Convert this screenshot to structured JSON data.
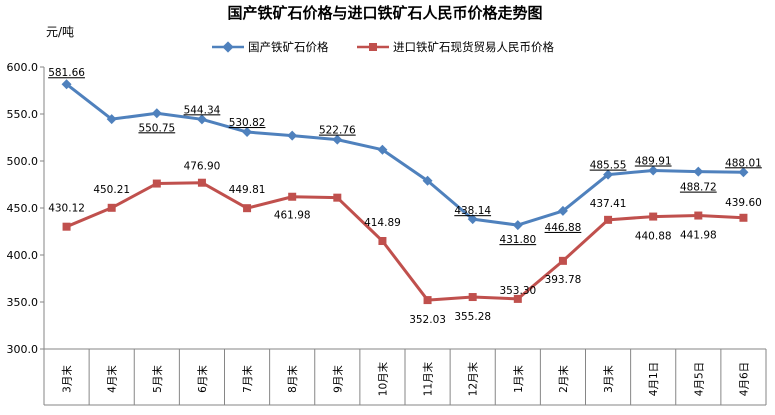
{
  "chart_data": {
    "type": "line",
    "title": "国产铁矿石价格与进口铁矿石人民币价格走势图",
    "ylabel": "元/吨",
    "ylim": [
      300,
      600
    ],
    "yticks": [
      "300.0",
      "350.0",
      "400.0",
      "450.0",
      "500.0",
      "550.0",
      "600.0"
    ],
    "categories": [
      "3月末",
      "4月末",
      "5月末",
      "6月末",
      "7月末",
      "8月末",
      "9月末",
      "10月末",
      "11月末",
      "12月末",
      "1月末",
      "2月末",
      "3月末",
      "4月1日",
      "4月5日",
      "4月6日"
    ],
    "legend_position": "top-center",
    "grid": false,
    "series": [
      {
        "name": "国产铁矿石价格",
        "color": "#4f81bd",
        "marker": "diamond",
        "values": [
          581.66,
          544.5,
          550.75,
          544.34,
          530.82,
          527.0,
          522.76,
          512.0,
          479.0,
          438.14,
          431.8,
          446.88,
          485.55,
          489.91,
          488.72,
          488.01
        ],
        "labels": [
          "581.66",
          "",
          "550.75",
          "544.34",
          "530.82",
          "",
          "522.76",
          "",
          "",
          "438.14",
          "431.80",
          "446.88",
          "485.55",
          "489.91",
          "488.72",
          "488.01"
        ]
      },
      {
        "name": "进口铁矿石现货贸易人民币价格",
        "color": "#c0504d",
        "marker": "square",
        "values": [
          430.12,
          450.21,
          476.0,
          476.9,
          449.81,
          461.98,
          461.0,
          414.89,
          352.03,
          355.28,
          353.3,
          393.78,
          437.41,
          440.88,
          441.98,
          439.6
        ],
        "labels": [
          "430.12",
          "450.21",
          "",
          "476.90",
          "449.81",
          "461.98",
          "",
          "414.89",
          "352.03",
          "355.28",
          "353.30",
          "393.78",
          "437.41",
          "440.88",
          "441.98",
          "439.60"
        ]
      }
    ]
  }
}
